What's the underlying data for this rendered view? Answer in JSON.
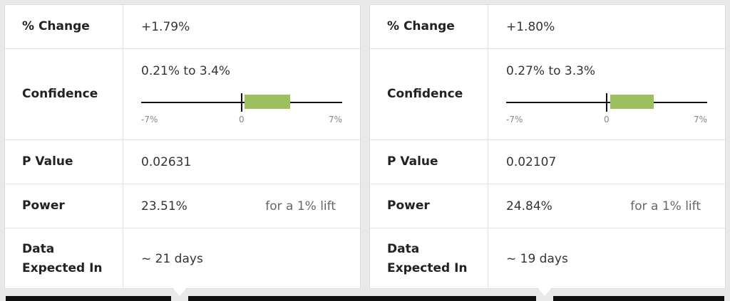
{
  "labels": {
    "change": "% Change",
    "confidence": "Confidence",
    "p_value": "P Value",
    "power": "Power",
    "expected": "Data\nExpected In"
  },
  "accent_color": "#9cbf5f",
  "panels": [
    {
      "change": "+1.79%",
      "confidence_text": "0.21% to 3.4%",
      "confidence_low": 0.21,
      "confidence_high": 3.4,
      "axis_min_label": "-7%",
      "axis_zero_label": "0",
      "axis_max_label": "7%",
      "p_value": "0.02631",
      "power": "23.51%",
      "power_note": "for a 1% lift",
      "expected": "~ 21 days"
    },
    {
      "change": "+1.80%",
      "confidence_text": "0.27% to 3.3%",
      "confidence_low": 0.27,
      "confidence_high": 3.3,
      "axis_min_label": "-7%",
      "axis_zero_label": "0",
      "axis_max_label": "7%",
      "p_value": "0.02107",
      "power": "24.84%",
      "power_note": "for a 1% lift",
      "expected": "~ 19 days"
    }
  ]
}
